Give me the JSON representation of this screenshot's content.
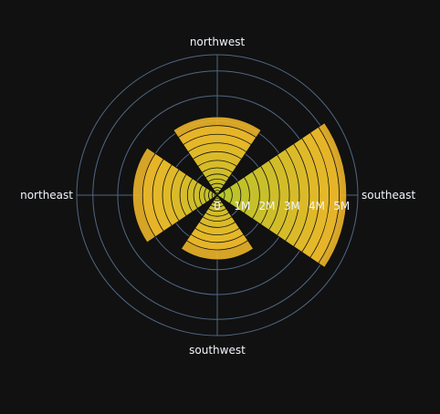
{
  "chart_data": {
    "type": "barpolar",
    "angular_categories": [
      "southeast",
      "southwest",
      "northeast",
      "northwest"
    ],
    "radial_axis": {
      "range": [
        0,
        5650000
      ],
      "tickvals": [
        0,
        1000000,
        2000000,
        3000000,
        4000000,
        5000000
      ],
      "ticktext": [
        "0",
        "1M",
        "2M",
        "3M",
        "4M",
        "5M"
      ]
    },
    "series": [
      {
        "values": [
          5200000,
          2600000,
          3400000,
          3150000
        ]
      },
      {
        "values": [
          4900000,
          2200000,
          3000000,
          2800000
        ]
      },
      {
        "values": [
          4500000,
          1900000,
          2600000,
          2450000
        ]
      },
      {
        "values": [
          4100000,
          1600000,
          2200000,
          2100000
        ]
      },
      {
        "values": [
          3700000,
          1300000,
          1850000,
          1750000
        ]
      },
      {
        "values": [
          3300000,
          1050000,
          1500000,
          1400000
        ]
      },
      {
        "values": [
          2900000,
          850000,
          1200000,
          1100000
        ]
      },
      {
        "values": [
          2500000,
          650000,
          950000,
          850000
        ]
      },
      {
        "values": [
          2100000,
          480000,
          720000,
          650000
        ]
      },
      {
        "values": [
          1700000,
          340000,
          520000,
          470000
        ]
      },
      {
        "values": [
          1300000,
          220000,
          350000,
          310000
        ]
      },
      {
        "values": [
          950000,
          130000,
          210000,
          190000
        ]
      },
      {
        "values": [
          600000,
          70000,
          110000,
          100000
        ]
      },
      {
        "values": [
          300000,
          30000,
          50000,
          45000
        ]
      }
    ],
    "colors": {
      "background": "#111111",
      "grid": "#506784",
      "text": "#f2f5fa",
      "outer_bar": "#ecb529",
      "inner_bar": "#b3c62a",
      "bar_line": "#111111"
    }
  }
}
